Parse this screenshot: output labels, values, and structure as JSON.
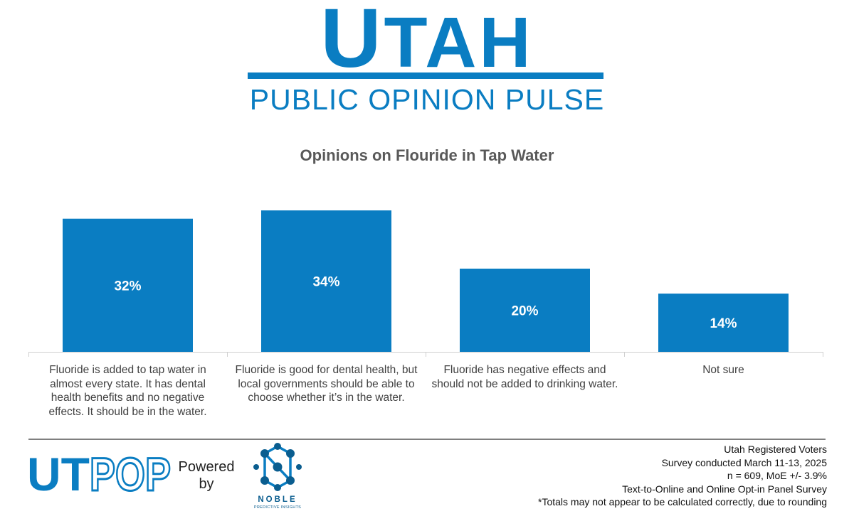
{
  "header": {
    "brand_initial": "U",
    "brand_rest": "TAH",
    "brand_subtitle": "PUBLIC OPINION PULSE"
  },
  "chart_data": {
    "type": "bar",
    "title": "Opinions on Flouride in Tap Water",
    "categories": [
      "Fluoride is added to tap water in almost every state. It has dental health benefits and no negative effects. It should be in the water.",
      "Fluoride is good for dental health, but local governments should be able to choose whether it’s in the water.",
      "Fluoride has negative effects and should not be added to drinking water.",
      "Not sure"
    ],
    "values": [
      32,
      34,
      20,
      14
    ],
    "value_labels": [
      "32%",
      "34%",
      "20%",
      "14%"
    ],
    "unit": "%",
    "ylim": [
      0,
      34
    ],
    "grid": false,
    "legend": "none",
    "bar_color": "#0a7dc2"
  },
  "footer": {
    "logo_ut": "UT",
    "logo_pop": "POP",
    "powered_line1": "Powered",
    "powered_line2": "by",
    "partner_name": "NOBLE",
    "partner_subtitle": "PREDICTIVE INSIGHTS",
    "notes": [
      "Utah Registered Voters",
      "Survey conducted March 11-13, 2025",
      "n = 609, MoE +/- 3.9%",
      "Text-to-Online and Online Opt-in Panel Survey",
      "*Totals may not appear to be calculated correctly, due to rounding"
    ]
  },
  "colors": {
    "accent": "#0a7dc2",
    "title_text": "#595959",
    "partner": "#0a5d8f"
  }
}
